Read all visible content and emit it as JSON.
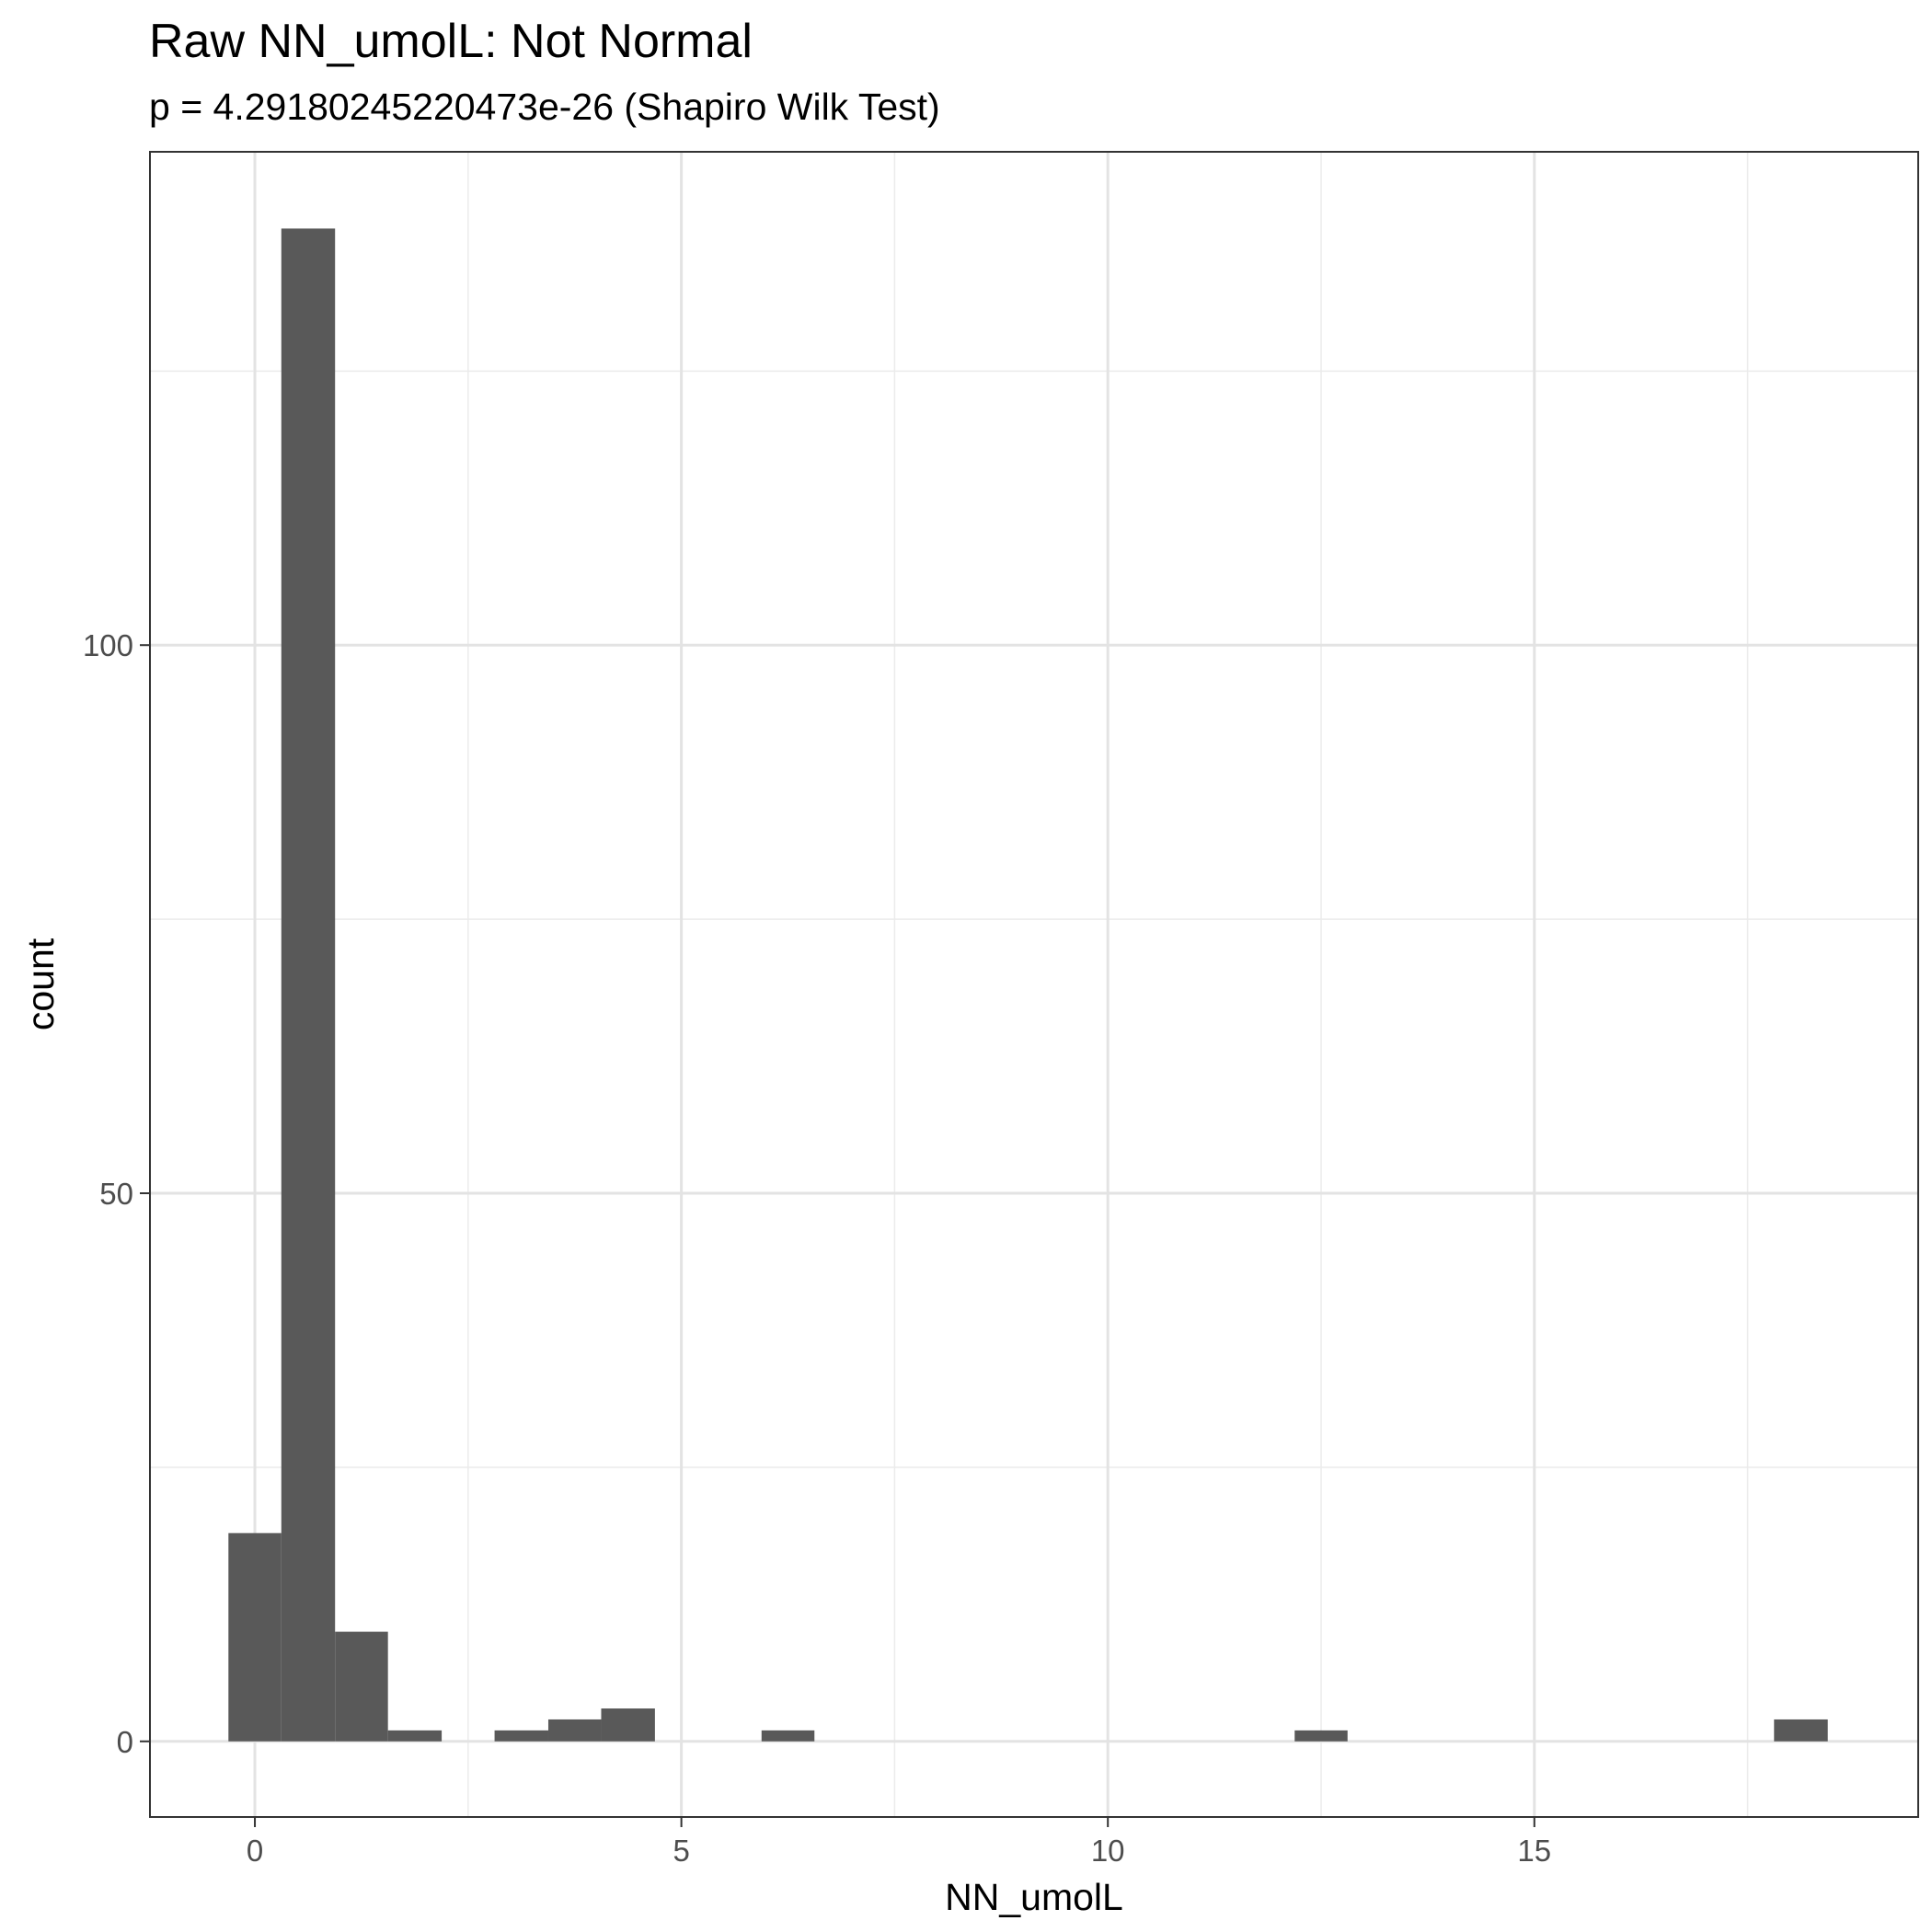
{
  "chart_data": {
    "type": "bar",
    "title": "Raw NN_umolL: Not Normal",
    "subtitle": "p = 4.29180245220473e-26 (Shapiro Wilk Test)",
    "xlabel": "NN_umolL",
    "ylabel": "count",
    "xlim": [
      -1.23,
      19.5
    ],
    "ylim": [
      -6.9,
      145
    ],
    "x_ticks": [
      0,
      5,
      10,
      15
    ],
    "x_tick_labels": [
      "0",
      "5",
      "10",
      "15"
    ],
    "y_ticks": [
      0,
      50,
      100
    ],
    "y_tick_labels": [
      "0",
      "50",
      "100"
    ],
    "x_minor_ticks": [
      2.5,
      7.5,
      12.5,
      17.5
    ],
    "y_minor_ticks": [
      25,
      75,
      125
    ],
    "grid": true,
    "bar_color": "#595959",
    "bins": [
      {
        "x0": -0.31,
        "x1": 0.31,
        "count": 19
      },
      {
        "x0": 0.31,
        "x1": 0.94,
        "count": 138
      },
      {
        "x0": 0.94,
        "x1": 1.56,
        "count": 10
      },
      {
        "x0": 1.56,
        "x1": 2.19,
        "count": 1
      },
      {
        "x0": 2.81,
        "x1": 3.44,
        "count": 1
      },
      {
        "x0": 3.44,
        "x1": 4.06,
        "count": 2
      },
      {
        "x0": 4.06,
        "x1": 4.69,
        "count": 3
      },
      {
        "x0": 5.94,
        "x1": 6.56,
        "count": 1
      },
      {
        "x0": 12.19,
        "x1": 12.81,
        "count": 1
      },
      {
        "x0": 17.81,
        "x1": 18.44,
        "count": 2
      }
    ]
  }
}
